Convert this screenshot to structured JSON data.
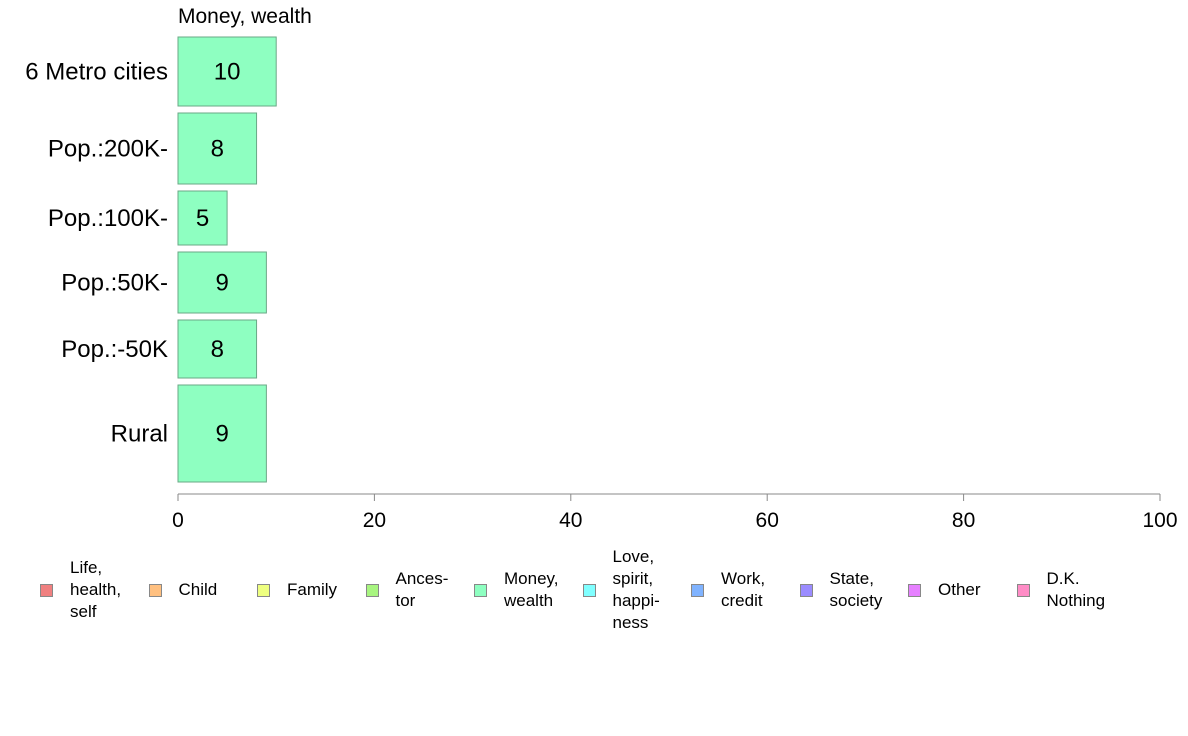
{
  "chart_data": {
    "type": "bar",
    "orientation": "horizontal",
    "title": "Money, wealth",
    "categories": [
      "6 Metro cities",
      "Pop.:200K-",
      "Pop.:100K-",
      "Pop.:50K-",
      "Pop.:-50K",
      "Rural"
    ],
    "series": [
      {
        "name": "Money, wealth",
        "values": [
          10,
          8,
          5,
          9,
          8,
          9
        ],
        "color": "#8effc1"
      }
    ],
    "xlim": [
      0,
      100
    ],
    "xticks": [
      0,
      20,
      40,
      60,
      80,
      100
    ],
    "grid": false,
    "legend_position": "bottom",
    "legend": [
      {
        "label": "Life,\nhealth,\nself",
        "color": "#f08080"
      },
      {
        "label": "Child",
        "color": "#ffc080"
      },
      {
        "label": "Family",
        "color": "#eeff80"
      },
      {
        "label": "Ances-\ntor",
        "color": "#a8f580"
      },
      {
        "label": "Money,\nwealth",
        "color": "#8effc1"
      },
      {
        "label": "Love,\nspirit,\nhappi-\nness",
        "color": "#80ffff"
      },
      {
        "label": "Work,\ncredit",
        "color": "#80b3ff"
      },
      {
        "label": "State,\nsociety",
        "color": "#9b8cff"
      },
      {
        "label": "Other",
        "color": "#e680ff"
      },
      {
        "label": "D.K.\nNothing",
        "color": "#ff8cc6"
      }
    ]
  }
}
